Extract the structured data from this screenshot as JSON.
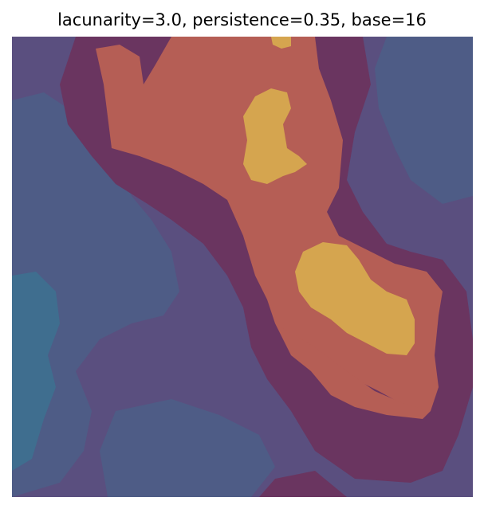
{
  "figure": {
    "title": "lacunarity=3.0, persistence=0.35, base=16"
  },
  "colors": {
    "level_teal": "#3f6e8f",
    "level_blue": "#4e5c86",
    "level_slate": "#5a4f7f",
    "level_purple": "#633e6e",
    "level_plum": "#6a3560",
    "level_coral": "#b55e55",
    "level_gold": "#d5a54f"
  }
}
